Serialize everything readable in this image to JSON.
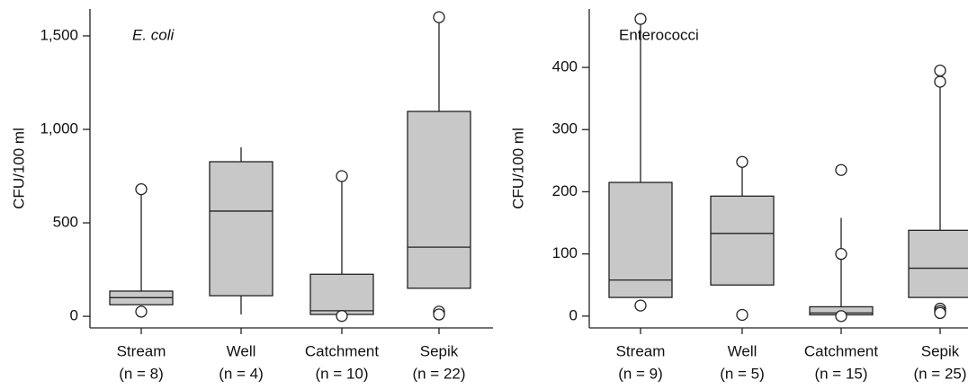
{
  "chart_data": [
    {
      "type": "box",
      "title": "E. coli",
      "y_label": "CFU/100 ml",
      "categories": [
        "Stream",
        "Well",
        "Catchment",
        "Sepik"
      ],
      "n_labels": [
        "(n = 8)",
        "(n = 4)",
        "(n = 10)",
        "(n = 22)"
      ],
      "color": "#c8c8c8",
      "ylim": [
        -62,
        1644
      ],
      "yticks": [
        0,
        500,
        {
          "value": 1000,
          "label": "1,000"
        },
        {
          "value": 1500,
          "label": "1,500"
        }
      ],
      "boxes": [
        {
          "min": 62,
          "q1": 62,
          "median": 100,
          "q3": 135,
          "max": 675,
          "outliers": [
            680,
            25
          ]
        },
        {
          "min": 10,
          "q1": 110,
          "median": 563,
          "q3": 827,
          "max": 904,
          "outliers": []
        },
        {
          "min": 10,
          "q1": 10,
          "median": 30,
          "q3": 225,
          "max": 720,
          "outliers": [
            750,
            2
          ]
        },
        {
          "min": 150,
          "q1": 150,
          "median": 370,
          "q3": 1096,
          "max": 1580,
          "outliers": [
            1600,
            25,
            10
          ]
        }
      ]
    },
    {
      "type": "box",
      "title": "Enterococci",
      "y_label": "CFU/100 ml",
      "categories": [
        "Stream",
        "Well",
        "Catchment",
        "Sepik"
      ],
      "n_labels": [
        "(n = 9)",
        "(n = 5)",
        "(n = 15)",
        "(n = 25)"
      ],
      "color": "#c8c8c8",
      "ylim": [
        -19,
        494
      ],
      "yticks": [
        0,
        100,
        200,
        300,
        400
      ],
      "boxes": [
        {
          "min": 30,
          "q1": 30,
          "median": 58,
          "q3": 215,
          "max": 470,
          "outliers": [
            478,
            17
          ]
        },
        {
          "min": 50,
          "q1": 50,
          "median": 133,
          "q3": 193,
          "max": 240,
          "outliers": [
            248,
            2
          ]
        },
        {
          "min": 2,
          "q1": 2,
          "median": 5,
          "q3": 15,
          "max": 158,
          "outliers": [
            235,
            100,
            0
          ]
        },
        {
          "min": 30,
          "q1": 30,
          "median": 77,
          "q3": 138,
          "max": 370,
          "outliers": [
            395,
            377,
            12,
            8,
            5
          ]
        }
      ]
    }
  ]
}
